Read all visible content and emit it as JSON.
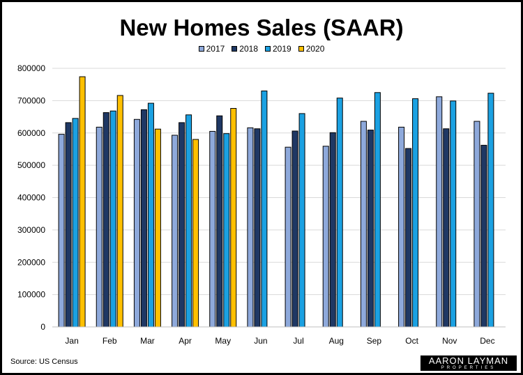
{
  "chart_data": {
    "type": "bar",
    "title": "New Homes Sales (SAAR)",
    "categories": [
      "Jan",
      "Feb",
      "Mar",
      "Apr",
      "May",
      "Jun",
      "Jul",
      "Aug",
      "Sep",
      "Oct",
      "Nov",
      "Dec"
    ],
    "series": [
      {
        "name": "2017",
        "color": "#8EA9DB",
        "values": [
          596000,
          618000,
          642000,
          593000,
          605000,
          616000,
          556000,
          559000,
          636000,
          618000,
          712000,
          636000
        ]
      },
      {
        "name": "2018",
        "color": "#1F3864",
        "values": [
          632000,
          663000,
          672000,
          632000,
          653000,
          613000,
          606000,
          601000,
          609000,
          552000,
          613000,
          562000
        ]
      },
      {
        "name": "2019",
        "color": "#1BA1E2",
        "values": [
          645000,
          668000,
          692000,
          656000,
          598000,
          730000,
          660000,
          708000,
          725000,
          706000,
          699000,
          723000
        ]
      },
      {
        "name": "2020",
        "color": "#FFC000",
        "values": [
          774000,
          716000,
          612000,
          580000,
          676000,
          null,
          null,
          null,
          null,
          null,
          null,
          null
        ]
      }
    ],
    "ylim": [
      0,
      800000
    ],
    "yticks": [
      "0",
      "100000",
      "200000",
      "300000",
      "400000",
      "500000",
      "600000",
      "700000",
      "800000"
    ],
    "xlabel": "",
    "ylabel": "",
    "grid": true,
    "legend": "top-center"
  },
  "source": "Source: US Census",
  "logo": {
    "main": "AARON LAYMAN",
    "sub": "PROPERTIES"
  }
}
